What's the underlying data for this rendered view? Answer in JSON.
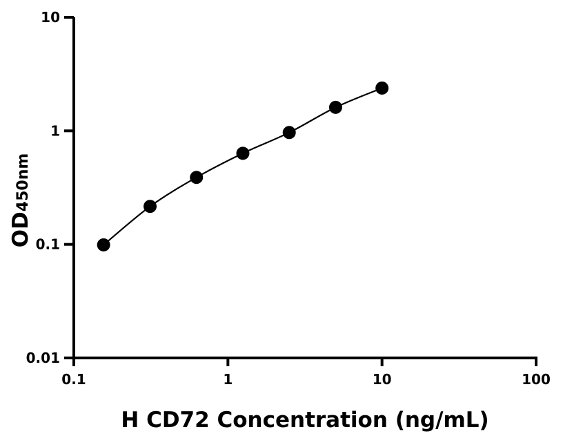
{
  "chart_data": {
    "type": "scatter",
    "title": "",
    "xlabel": "H CD72 Concentration (ng/mL)",
    "ylabel": "OD",
    "ylabel_subscript": "450nm",
    "xscale": "log",
    "yscale": "log",
    "xlim": [
      0.1,
      100
    ],
    "ylim": [
      0.01,
      10
    ],
    "xticks": [
      {
        "v": 0.1,
        "label": "0.1"
      },
      {
        "v": 1,
        "label": "1"
      },
      {
        "v": 10,
        "label": "10"
      },
      {
        "v": 100,
        "label": "100"
      }
    ],
    "yticks": [
      {
        "v": 0.01,
        "label": "0.01"
      },
      {
        "v": 0.1,
        "label": "0.1"
      },
      {
        "v": 1,
        "label": "1"
      },
      {
        "v": 10,
        "label": "10"
      }
    ],
    "grid": false,
    "fit_line": true,
    "series": [
      {
        "x": [
          0.156,
          0.3125,
          0.625,
          1.25,
          2.5,
          5,
          10
        ],
        "y": [
          0.099,
          0.216,
          0.389,
          0.634,
          0.966,
          1.61,
          2.38
        ],
        "color": "#000000"
      }
    ]
  }
}
